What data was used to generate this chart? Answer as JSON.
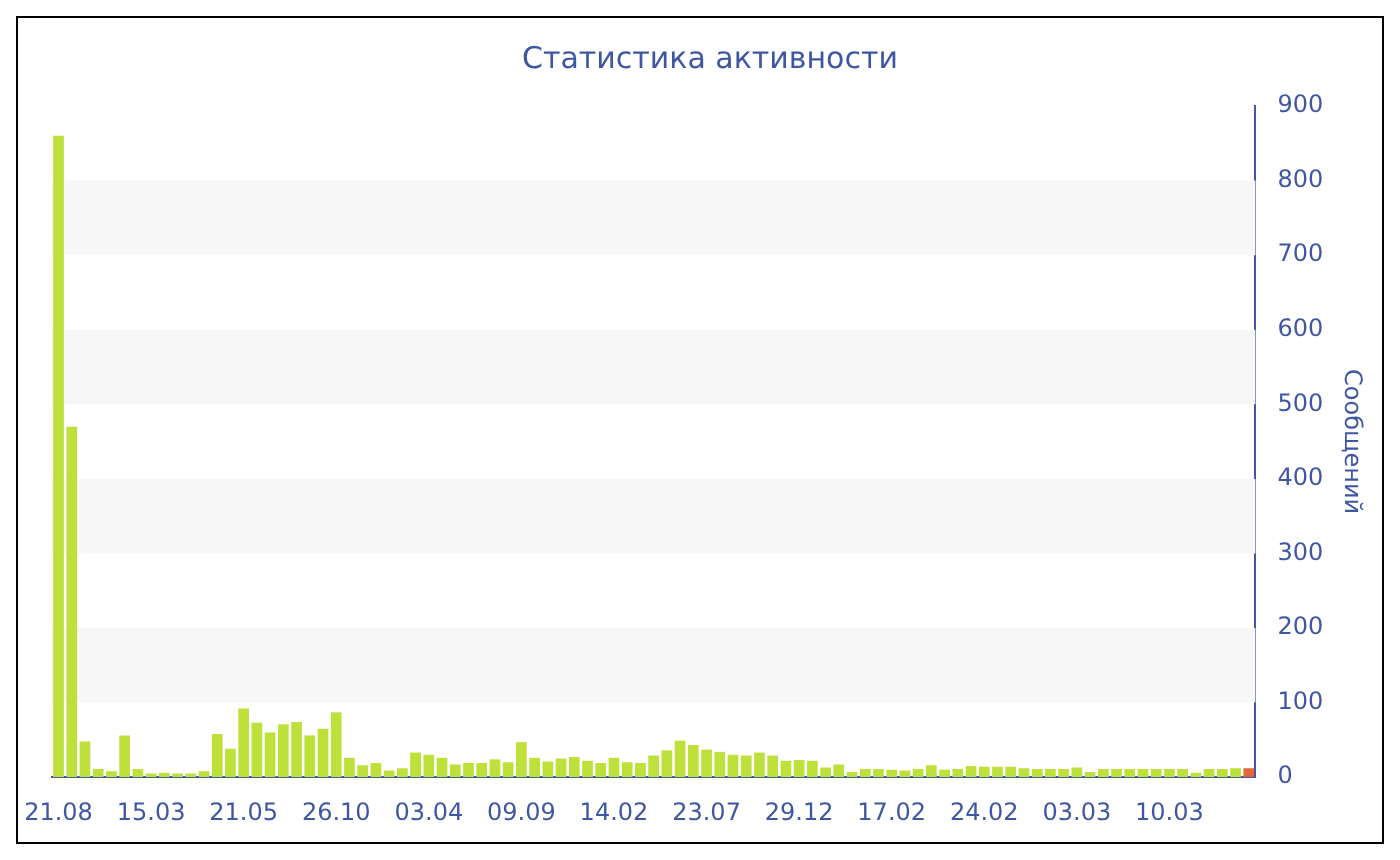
{
  "chart_data": {
    "type": "bar",
    "title": "Статистика активности",
    "ylabel": "Сообщений",
    "categories": [
      "21.08",
      null,
      null,
      null,
      null,
      null,
      null,
      "15.03",
      null,
      null,
      null,
      null,
      null,
      null,
      "21.05",
      null,
      null,
      null,
      null,
      null,
      null,
      "26.10",
      null,
      null,
      null,
      null,
      null,
      null,
      "03.04",
      null,
      null,
      null,
      null,
      null,
      null,
      "09.09",
      null,
      null,
      null,
      null,
      null,
      null,
      "14.02",
      null,
      null,
      null,
      null,
      null,
      null,
      "23.07",
      null,
      null,
      null,
      null,
      null,
      null,
      "29.12",
      null,
      null,
      null,
      null,
      null,
      null,
      "17.02",
      null,
      null,
      null,
      null,
      null,
      null,
      "24.02",
      null,
      null,
      null,
      null,
      null,
      null,
      "03.03",
      null,
      null,
      null,
      null,
      null,
      null,
      "10.03",
      null,
      null,
      null,
      null,
      null,
      null
    ],
    "values": [
      860,
      470,
      48,
      11,
      8,
      56,
      11,
      5,
      6,
      5,
      5,
      8,
      58,
      38,
      92,
      73,
      60,
      71,
      74,
      56,
      65,
      87,
      26,
      16,
      19,
      9,
      12,
      33,
      30,
      26,
      17,
      19,
      19,
      24,
      20,
      47,
      26,
      21,
      25,
      27,
      22,
      19,
      26,
      20,
      19,
      29,
      36,
      49,
      43,
      37,
      34,
      30,
      29,
      33,
      29,
      22,
      23,
      22,
      13,
      17,
      7,
      11,
      11,
      10,
      9,
      11,
      16,
      10,
      11,
      15,
      14,
      14,
      14,
      12,
      11,
      11,
      11,
      13,
      7,
      11,
      11,
      11,
      11,
      11,
      11,
      11,
      6,
      11,
      11,
      12,
      12
    ],
    "colors": [
      "#bde03a",
      "#bde03a",
      "#bde03a",
      "#bde03a",
      "#bde03a",
      "#bde03a",
      "#bde03a",
      "#bde03a",
      "#bde03a",
      "#bde03a",
      "#bde03a",
      "#bde03a",
      "#bde03a",
      "#bde03a",
      "#bde03a",
      "#bde03a",
      "#bde03a",
      "#bde03a",
      "#bde03a",
      "#bde03a",
      "#bde03a",
      "#bde03a",
      "#bde03a",
      "#bde03a",
      "#bde03a",
      "#bde03a",
      "#bde03a",
      "#bde03a",
      "#bde03a",
      "#bde03a",
      "#bde03a",
      "#bde03a",
      "#bde03a",
      "#bde03a",
      "#bde03a",
      "#bde03a",
      "#bde03a",
      "#bde03a",
      "#bde03a",
      "#bde03a",
      "#bde03a",
      "#bde03a",
      "#bde03a",
      "#bde03a",
      "#bde03a",
      "#bde03a",
      "#bde03a",
      "#bde03a",
      "#bde03a",
      "#bde03a",
      "#bde03a",
      "#bde03a",
      "#bde03a",
      "#bde03a",
      "#bde03a",
      "#bde03a",
      "#bde03a",
      "#bde03a",
      "#bde03a",
      "#bde03a",
      "#bde03a",
      "#bde03a",
      "#bde03a",
      "#bde03a",
      "#bde03a",
      "#bde03a",
      "#bde03a",
      "#bde03a",
      "#bde03a",
      "#bde03a",
      "#bde03a",
      "#bde03a",
      "#bde03a",
      "#bde03a",
      "#bde03a",
      "#bde03a",
      "#bde03a",
      "#bde03a",
      "#bde03a",
      "#bde03a",
      "#bde03a",
      "#bde03a",
      "#bde03a",
      "#bde03a",
      "#bde03a",
      "#bde03a",
      "#bde03a",
      "#bde03a",
      "#bde03a",
      "#bde03a",
      "#e0683a"
    ],
    "ylim": [
      0,
      900
    ],
    "yticks": [
      0,
      100,
      200,
      300,
      400,
      500,
      600,
      700,
      800,
      900
    ]
  }
}
